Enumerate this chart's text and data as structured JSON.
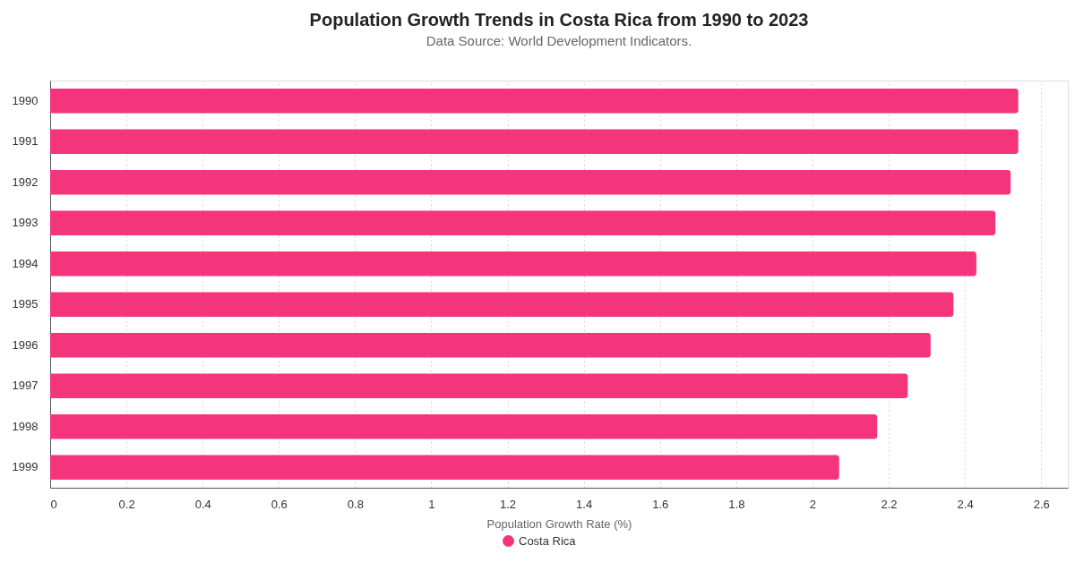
{
  "chart_data": {
    "type": "bar",
    "orientation": "horizontal",
    "title": "Population Growth Trends in Costa Rica from 1990 to 2023",
    "subtitle": "Data Source: World Development Indicators.",
    "xlabel": "Population Growth Rate (%)",
    "categories": [
      "1990",
      "1991",
      "1992",
      "1993",
      "1994",
      "1995",
      "1996",
      "1997",
      "1998",
      "1999"
    ],
    "series": [
      {
        "name": "Costa Rica",
        "color": "#f5357b",
        "values": [
          2.54,
          2.54,
          2.52,
          2.48,
          2.43,
          2.37,
          2.31,
          2.25,
          2.17,
          2.07
        ]
      }
    ],
    "xlim": [
      0,
      2.67
    ],
    "xticks": [
      0,
      0.2,
      0.4,
      0.6,
      0.8,
      1,
      1.2,
      1.4,
      1.6,
      1.8,
      2,
      2.2,
      2.4,
      2.6
    ],
    "grid": "x",
    "legend": "bottom"
  }
}
